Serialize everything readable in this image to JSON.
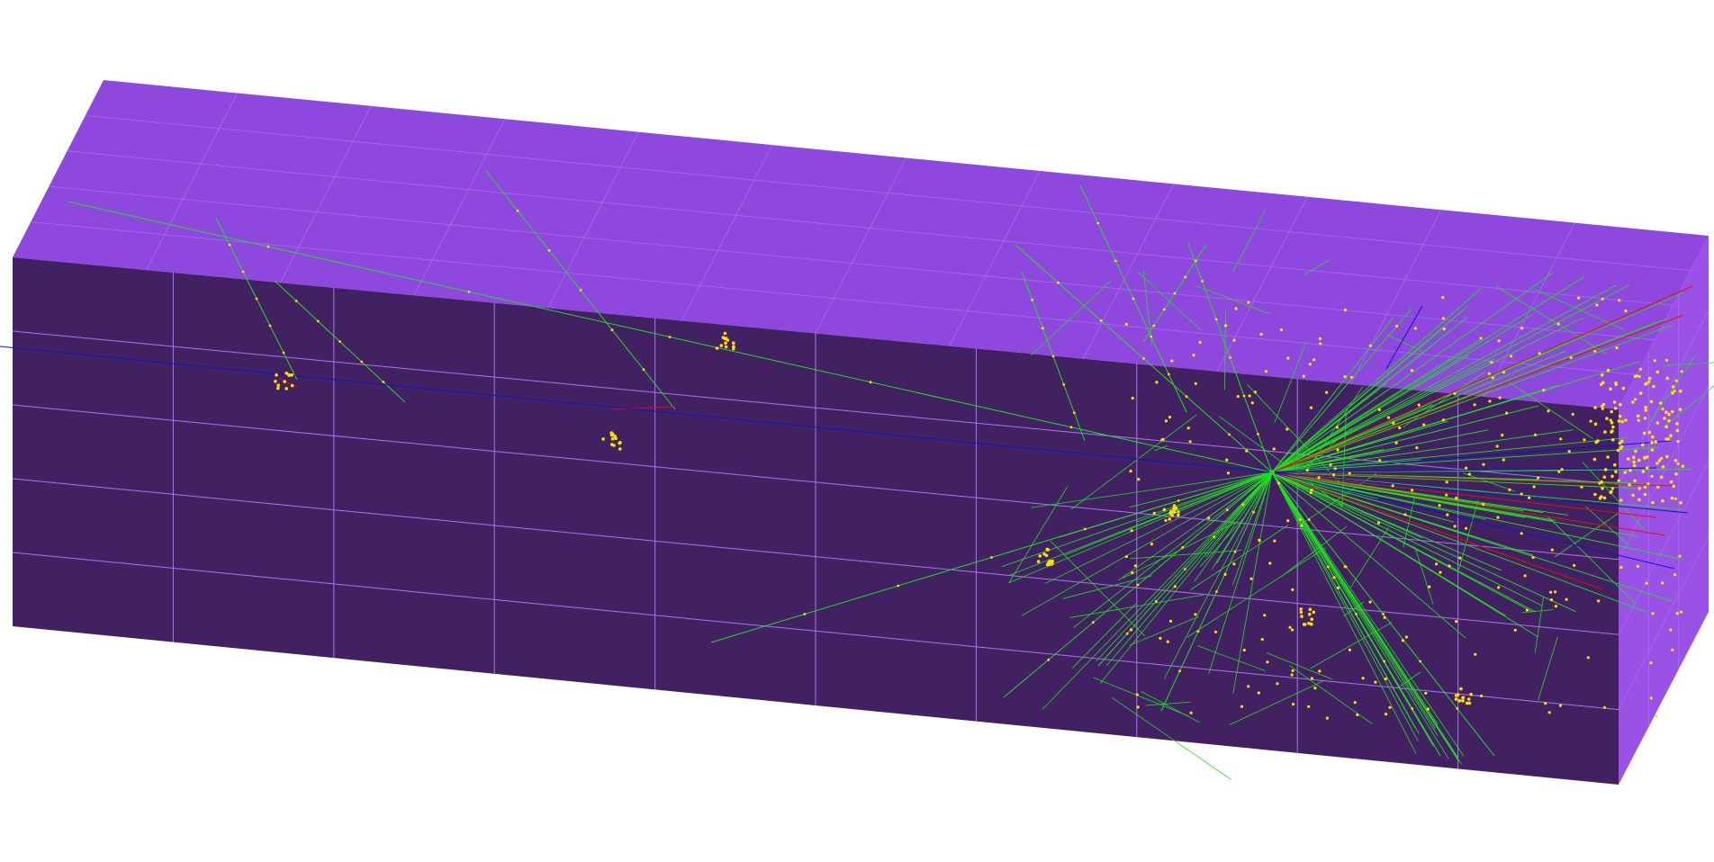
{
  "scene": {
    "background": "#ffffff",
    "detector": {
      "top_face_color": "#8f48dd",
      "front_face_color": "#412162",
      "side_face_color": "#9a52e6",
      "grid_line_color": "#a56cf0",
      "front_grid_color": "#a974ee"
    },
    "tracks": {
      "neutral_color": "#22dd22",
      "positive_color": "#dd1111",
      "beam_color": "#1111cc",
      "hit_color": "#ffe000"
    },
    "icons": {
      "detector": "detector-box-icon",
      "vertex": "primary-vertex-icon"
    }
  }
}
